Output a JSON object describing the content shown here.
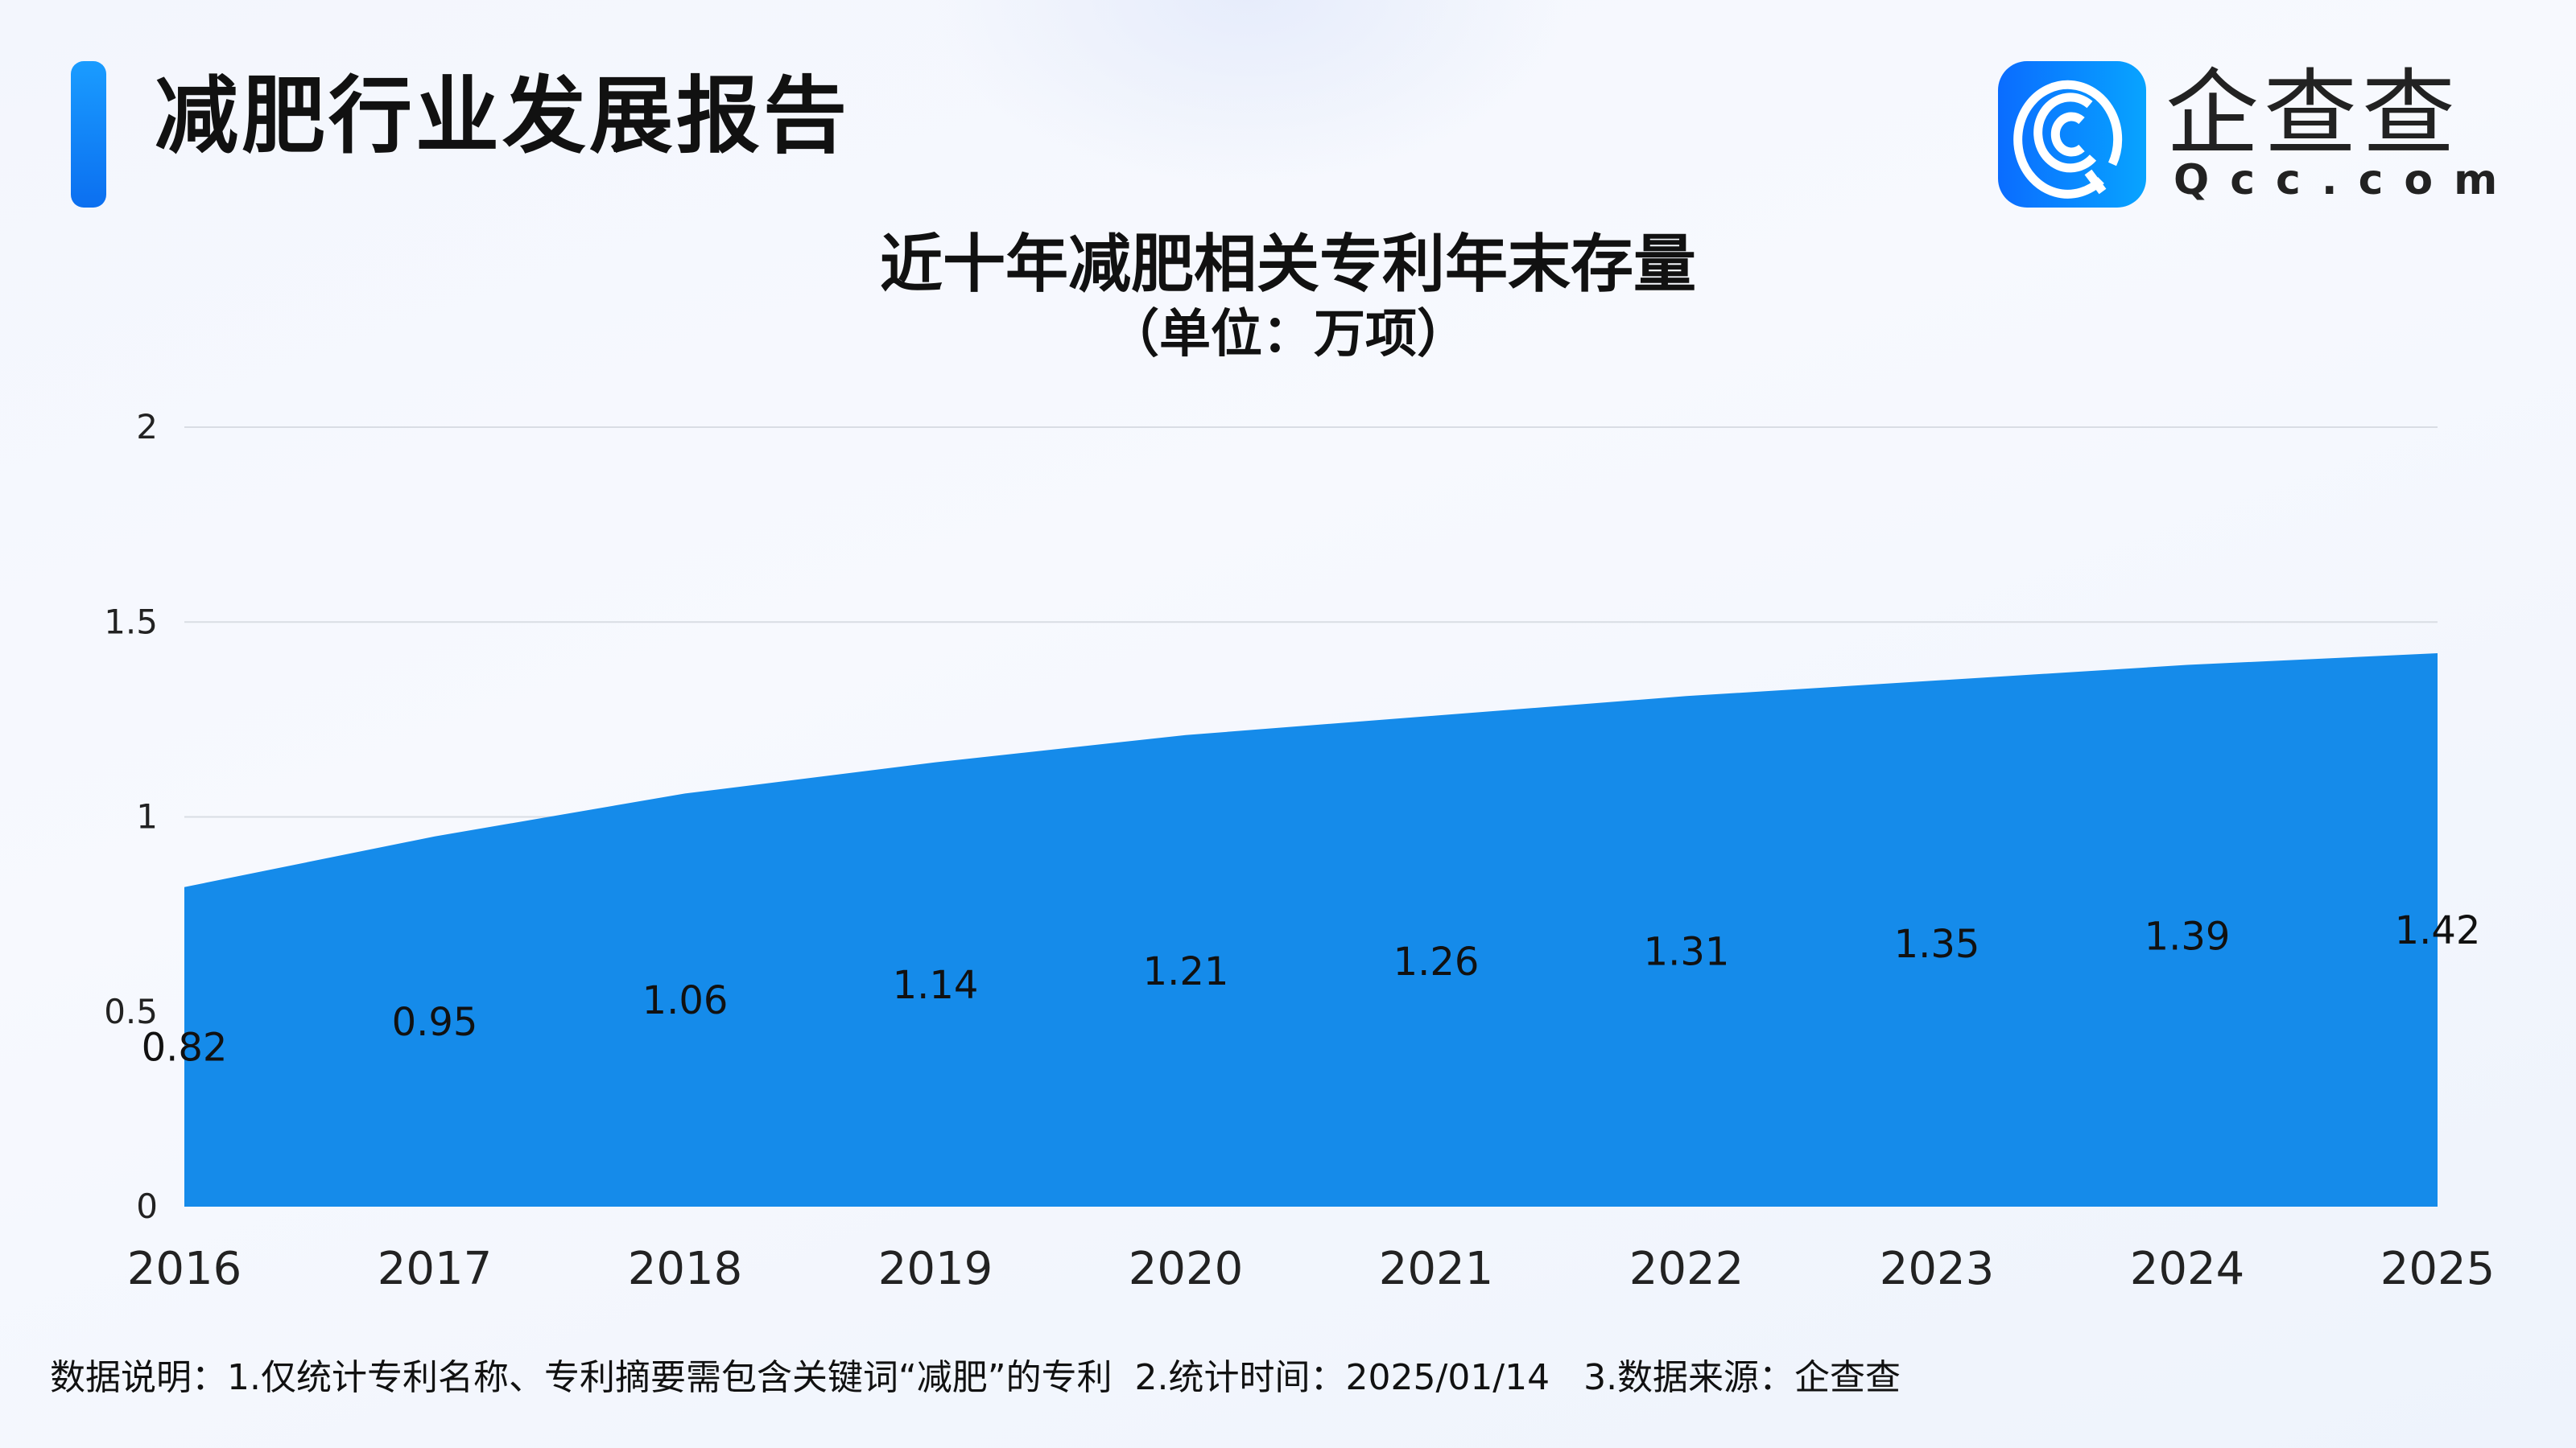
{
  "header": {
    "title": "减肥行业发展报告",
    "logo_text": "企查查",
    "logo_sub": "Qcc.com"
  },
  "chart_data": {
    "type": "area",
    "title": "近十年减肥相关专利年末存量",
    "subtitle": "（单位：万项）",
    "categories": [
      "2016",
      "2017",
      "2018",
      "2019",
      "2020",
      "2021",
      "2022",
      "2023",
      "2024",
      "2025"
    ],
    "values": [
      0.82,
      0.95,
      1.06,
      1.14,
      1.21,
      1.26,
      1.31,
      1.35,
      1.39,
      1.42
    ],
    "ylim": [
      0,
      2
    ],
    "yticks": [
      "0",
      "0.5",
      "1",
      "1.5",
      "2"
    ],
    "grid": true,
    "color": "#158bea"
  },
  "footer": {
    "note": "数据说明：1.仅统计专利名称、专利摘要需包含关键词“减肥”的专利  2.统计时间：2025/01/14   3.数据来源：企查查"
  }
}
